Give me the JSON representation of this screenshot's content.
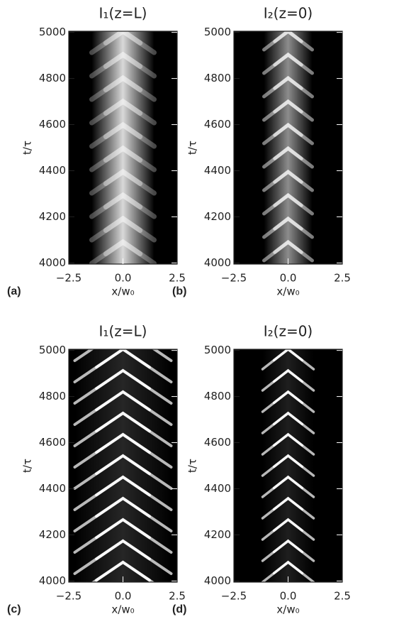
{
  "chart_data": [
    {
      "type": "heatmap",
      "title": "I₁(z=L)",
      "panel_label": "(a)",
      "xlabel": "x/w₀",
      "ylabel": "t/τ",
      "xlim": [
        -2.5,
        2.5
      ],
      "xticks": [
        {
          "value": -2.5,
          "label": "−2.5"
        },
        {
          "value": 0,
          "label": "0.0"
        },
        2.5
      ],
      "ylim": [
        3995,
        5005
      ],
      "yticks": [
        4000,
        4200,
        4400,
        4600,
        4800,
        5000
      ]
    },
    {
      "type": "heatmap",
      "title": "I₂(z=0)",
      "panel_label": "(b)",
      "xlabel": "x/w₀",
      "ylabel": "t/τ",
      "xlim": [
        -2.5,
        2.5
      ],
      "xticks": [
        {
          "value": -2.5,
          "label": "−2.5"
        },
        {
          "value": 0,
          "label": "0.0"
        },
        2.5
      ],
      "ylim": [
        3995,
        5005
      ],
      "yticks": [
        4000,
        4200,
        4400,
        4600,
        4800,
        5000
      ]
    },
    {
      "type": "heatmap",
      "title": "I₁(z=L)",
      "panel_label": "(c)",
      "xlabel": "x/w₀",
      "ylabel": "t/τ",
      "xlim": [
        -2.5,
        2.5
      ],
      "xticks": [
        {
          "value": -2.5,
          "label": "−2.5"
        },
        {
          "value": 0,
          "label": "0.0"
        },
        2.5
      ],
      "ylim": [
        3995,
        5005
      ],
      "yticks": [
        4000,
        4200,
        4400,
        4600,
        4800,
        5000
      ]
    },
    {
      "type": "heatmap",
      "title": "I₂(z=0)",
      "panel_label": "(d)",
      "xlabel": "x/w₀",
      "ylabel": "t/τ",
      "xlim": [
        -2.5,
        2.5
      ],
      "xticks": [
        {
          "value": -2.5,
          "label": "−2.5"
        },
        {
          "value": 0,
          "label": "0.0"
        },
        2.5
      ],
      "ylim": [
        3995,
        5005
      ],
      "yticks": [
        4000,
        4200,
        4400,
        4600,
        4800,
        5000
      ]
    }
  ]
}
